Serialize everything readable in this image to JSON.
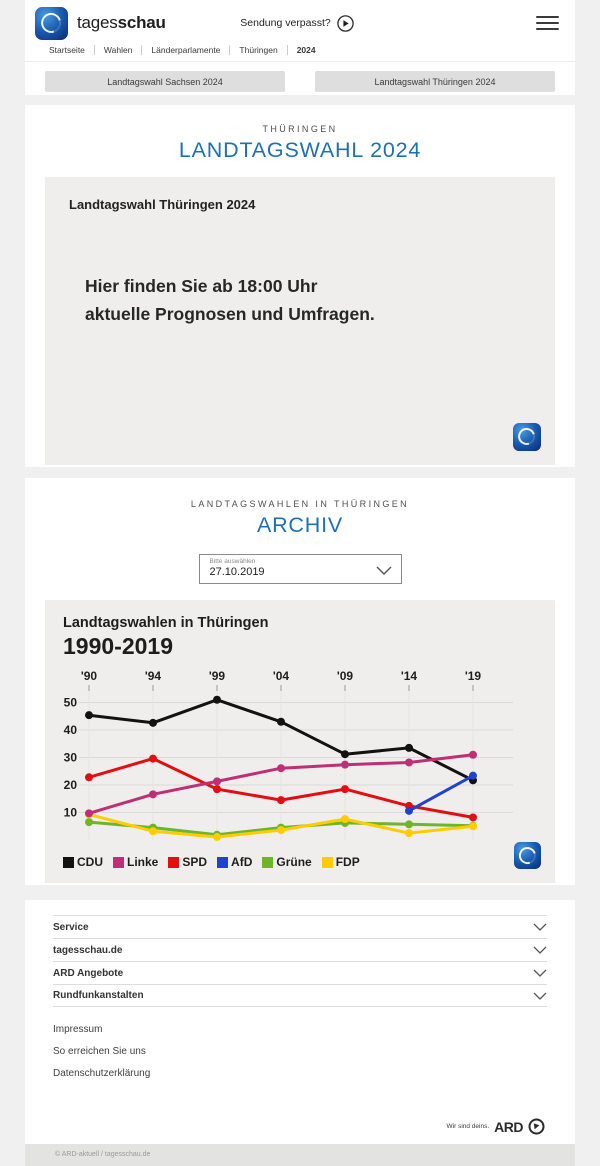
{
  "header": {
    "brand": {
      "word_regular": "tages",
      "word_bold": "schau"
    },
    "sendung_verpasst": "Sendung verpasst?",
    "breadcrumb": {
      "items": [
        "Startseite",
        "Wahlen",
        "Länderparlamente",
        "Thüringen",
        "2024"
      ]
    },
    "buttons": [
      "Landtagswahl Sachsen 2024",
      "Landtagswahl Thüringen 2024"
    ]
  },
  "main": {
    "kicker": "THÜRINGEN",
    "title": "LANDTAGSWAHL 2024",
    "teaser": {
      "heading": "Landtagswahl Thüringen 2024",
      "line1": "Hier finden Sie ab 18:00 Uhr",
      "line2": "aktuelle Prognosen und Umfragen."
    }
  },
  "archive": {
    "kicker": "LANDTAGSWAHLEN IN THÜRINGEN",
    "title": "ARCHIV",
    "select": {
      "label": "Bitte auswählen",
      "value": "27.10.2019"
    }
  },
  "chart_data": {
    "type": "line",
    "title": "Landtagswahlen in Thüringen",
    "subtitle": "1990-2019",
    "categories": [
      "'90",
      "'94",
      "'99",
      "'04",
      "'09",
      "'14",
      "'19"
    ],
    "series": [
      {
        "name": "CDU",
        "color": "#121212",
        "values": [
          45.4,
          42.6,
          51.0,
          43.0,
          31.2,
          33.5,
          21.7
        ]
      },
      {
        "name": "Linke",
        "color": "#be3075",
        "values": [
          9.7,
          16.6,
          21.3,
          26.1,
          27.4,
          28.2,
          31.0
        ]
      },
      {
        "name": "SPD",
        "color": "#e10e12",
        "values": [
          22.8,
          29.6,
          18.5,
          14.5,
          18.5,
          12.4,
          8.2
        ]
      },
      {
        "name": "AfD",
        "color": "#2042cc",
        "values": [
          null,
          null,
          null,
          null,
          null,
          10.6,
          23.4
        ]
      },
      {
        "name": "Grüne",
        "color": "#6fb52a",
        "values": [
          6.5,
          4.5,
          1.9,
          4.5,
          6.2,
          5.7,
          5.2
        ]
      },
      {
        "name": "FDP",
        "color": "#ffcc00",
        "values": [
          9.3,
          3.2,
          1.1,
          3.6,
          7.6,
          2.5,
          5.0
        ]
      }
    ],
    "draw_order": [
      0,
      2,
      4,
      5,
      1,
      3
    ],
    "ylim": [
      0,
      56
    ],
    "yticks": [
      10,
      20,
      30,
      40,
      50
    ],
    "grid": true,
    "legend_position": "bottom"
  },
  "footer": {
    "accordion": [
      "Service",
      "tagesschau.de",
      "ARD Angebote",
      "Rundfunkanstalten"
    ],
    "links": [
      "Impressum",
      "So erreichen Sie uns",
      "Datenschutzerklärung"
    ],
    "ard": {
      "claim": "Wir sind deins.",
      "brand": "ARD"
    },
    "copyright": "© ARD-aktuell / tagesschau.de"
  },
  "icons": {
    "brand_logo": "tagesschau-logo-icon",
    "play": "play-icon",
    "menu": "hamburger-menu-icon",
    "select": "chevron-down-icon",
    "ard_circle": "ard-logo-icon"
  },
  "colors": {
    "accent_blue": "#1e6fb4",
    "page_background": "#f0f0f0",
    "card_background": "#ffffff",
    "box_background": "#efeeec",
    "button_background": "#dedede"
  }
}
